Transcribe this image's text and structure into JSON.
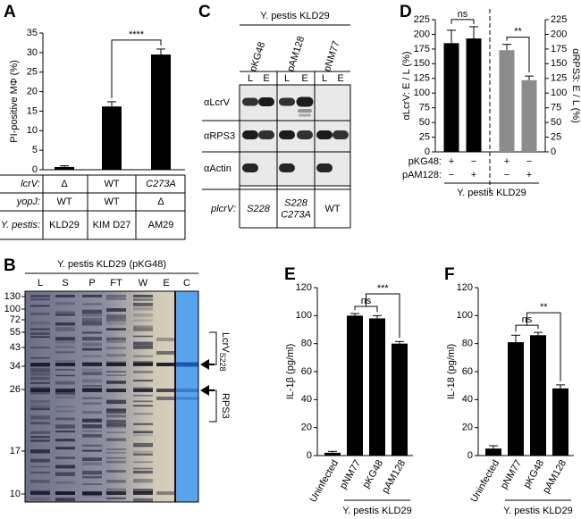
{
  "chart_data": [
    {
      "type": "bar",
      "panel": "A",
      "ylabel": "PI-positive MΦ (%)",
      "ylim": [
        0,
        35
      ],
      "yticks": [
        0,
        5,
        10,
        15,
        20,
        25,
        30,
        35
      ],
      "color": "#000000",
      "categories": [
        "KLD29",
        "KIM D27",
        "AM29"
      ],
      "values": [
        0.7,
        16.2,
        29.5
      ],
      "errors": [
        0.3,
        1.2,
        1.4
      ],
      "significance": [
        "****"
      ],
      "table": {
        "row_labels": [
          "lcrV:",
          "yopJ:",
          "Y. pestis:"
        ],
        "rows": [
          [
            "Δ",
            "WT",
            "C273A"
          ],
          [
            "WT",
            "WT",
            "Δ"
          ]
        ]
      }
    },
    {
      "type": "bar",
      "panel": "D",
      "ylabel": "αLcrV: E / L (%)",
      "y2label": "αRPS3: E / L (%)",
      "ylim": [
        0,
        225
      ],
      "yticks": [
        0,
        25,
        50,
        75,
        100,
        125,
        150,
        175,
        200,
        225
      ],
      "y2lim": [
        0,
        225
      ],
      "y2ticks": [
        0,
        25,
        50,
        75,
        100,
        125,
        150,
        175,
        200,
        225
      ],
      "series": [
        {
          "color": "#000000",
          "values": [
            185,
            193
          ],
          "errors": [
            22,
            20
          ]
        },
        {
          "axis": "y2",
          "color": "#8c8c8c",
          "values": [
            173,
            122
          ],
          "errors": [
            10,
            7
          ]
        }
      ],
      "significance": [
        "ns",
        "**"
      ],
      "table": {
        "row_labels": [
          "pKG48:",
          "pAM128:"
        ],
        "rows": [
          [
            "+",
            "−",
            "+",
            "−"
          ],
          [
            "−",
            "+",
            "−",
            "+"
          ]
        ]
      },
      "group_label": "Y. pestis KLD29"
    },
    {
      "type": "bar",
      "panel": "E",
      "ylabel": "IL-1β (pg/ml)",
      "ylim": [
        0,
        120
      ],
      "yticks": [
        0,
        20,
        40,
        60,
        80,
        100,
        120
      ],
      "color": "#000000",
      "categories": [
        "Uninfected",
        "pNM77",
        "pKG48",
        "pAM128"
      ],
      "values": [
        2,
        100,
        98,
        80
      ],
      "errors": [
        1,
        1.5,
        2,
        1.5
      ],
      "significance": [
        "ns",
        "***"
      ],
      "group_label": "Y. pestis KLD29"
    },
    {
      "type": "bar",
      "panel": "F",
      "ylabel": "IL-18 (pg/ml)",
      "ylim": [
        0,
        120
      ],
      "yticks": [
        0,
        20,
        40,
        60,
        80,
        100,
        120
      ],
      "color": "#000000",
      "categories": [
        "Uninfected",
        "pNM77",
        "pKG48",
        "pAM128"
      ],
      "values": [
        5,
        81,
        86,
        48
      ],
      "errors": [
        2,
        5,
        2,
        2.5
      ],
      "significance": [
        "ns",
        "**"
      ],
      "group_label": "Y. pestis KLD29"
    }
  ],
  "gels": {
    "B": {
      "panel": "B",
      "title": "Y. pestis KLD29 (pKG48)",
      "lanes": [
        "L",
        "S",
        "P",
        "FT",
        "W",
        "E",
        "C"
      ],
      "markers": [
        130,
        100,
        72,
        55,
        43,
        34,
        26,
        17,
        10
      ],
      "bands": [
        {
          "name": "LcrV",
          "subscript": "S228"
        },
        {
          "name": "RPS3"
        }
      ]
    },
    "C": {
      "panel": "C",
      "title": "Y. pestis KLD29",
      "plasmids": [
        "pKG48",
        "pAM128",
        "pNM77"
      ],
      "lanes": [
        "L",
        "E"
      ],
      "antibodies": [
        "αLcrV",
        "αRPS3",
        "αActin"
      ],
      "allele_label": "plcrV:",
      "alleles": [
        [
          "S228"
        ],
        [
          "S228",
          "C273A"
        ],
        [
          "WT"
        ]
      ]
    }
  }
}
